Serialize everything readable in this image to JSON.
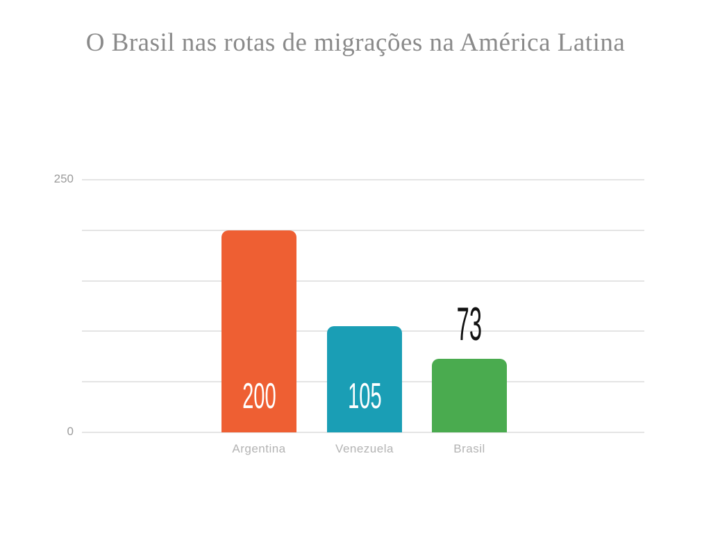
{
  "title": {
    "text": "O Brasil nas rotas de migrações na América Latina",
    "color": "#8a8a8a"
  },
  "chart_data": {
    "type": "bar",
    "title": "O Brasil nas rotas de migrações na América Latina",
    "categories": [
      "Argentina",
      "Venezuela",
      "Brasil"
    ],
    "values": [
      200,
      105,
      73
    ],
    "value_labels": [
      "200",
      "105",
      "73"
    ],
    "value_label_placement": [
      "inside",
      "inside",
      "outside"
    ],
    "value_label_colors": [
      "#ffffff",
      "#ffffff",
      "#111111"
    ],
    "bar_colors": [
      "#ee5f33",
      "#1a9eb5",
      "#4aab4f"
    ],
    "xlabel": "",
    "ylabel": "",
    "ylim": [
      0,
      250
    ],
    "gridline_values": [
      0,
      50,
      100,
      150,
      200,
      250
    ],
    "yticks_labeled": [
      {
        "value": 250,
        "label": "250"
      },
      {
        "value": 0,
        "label": "0"
      }
    ],
    "grid": true,
    "legend": false,
    "gridline_color": "#e4e4e4",
    "ytick_color": "#9b9b9b",
    "category_label_color": "#b3b3b3"
  }
}
